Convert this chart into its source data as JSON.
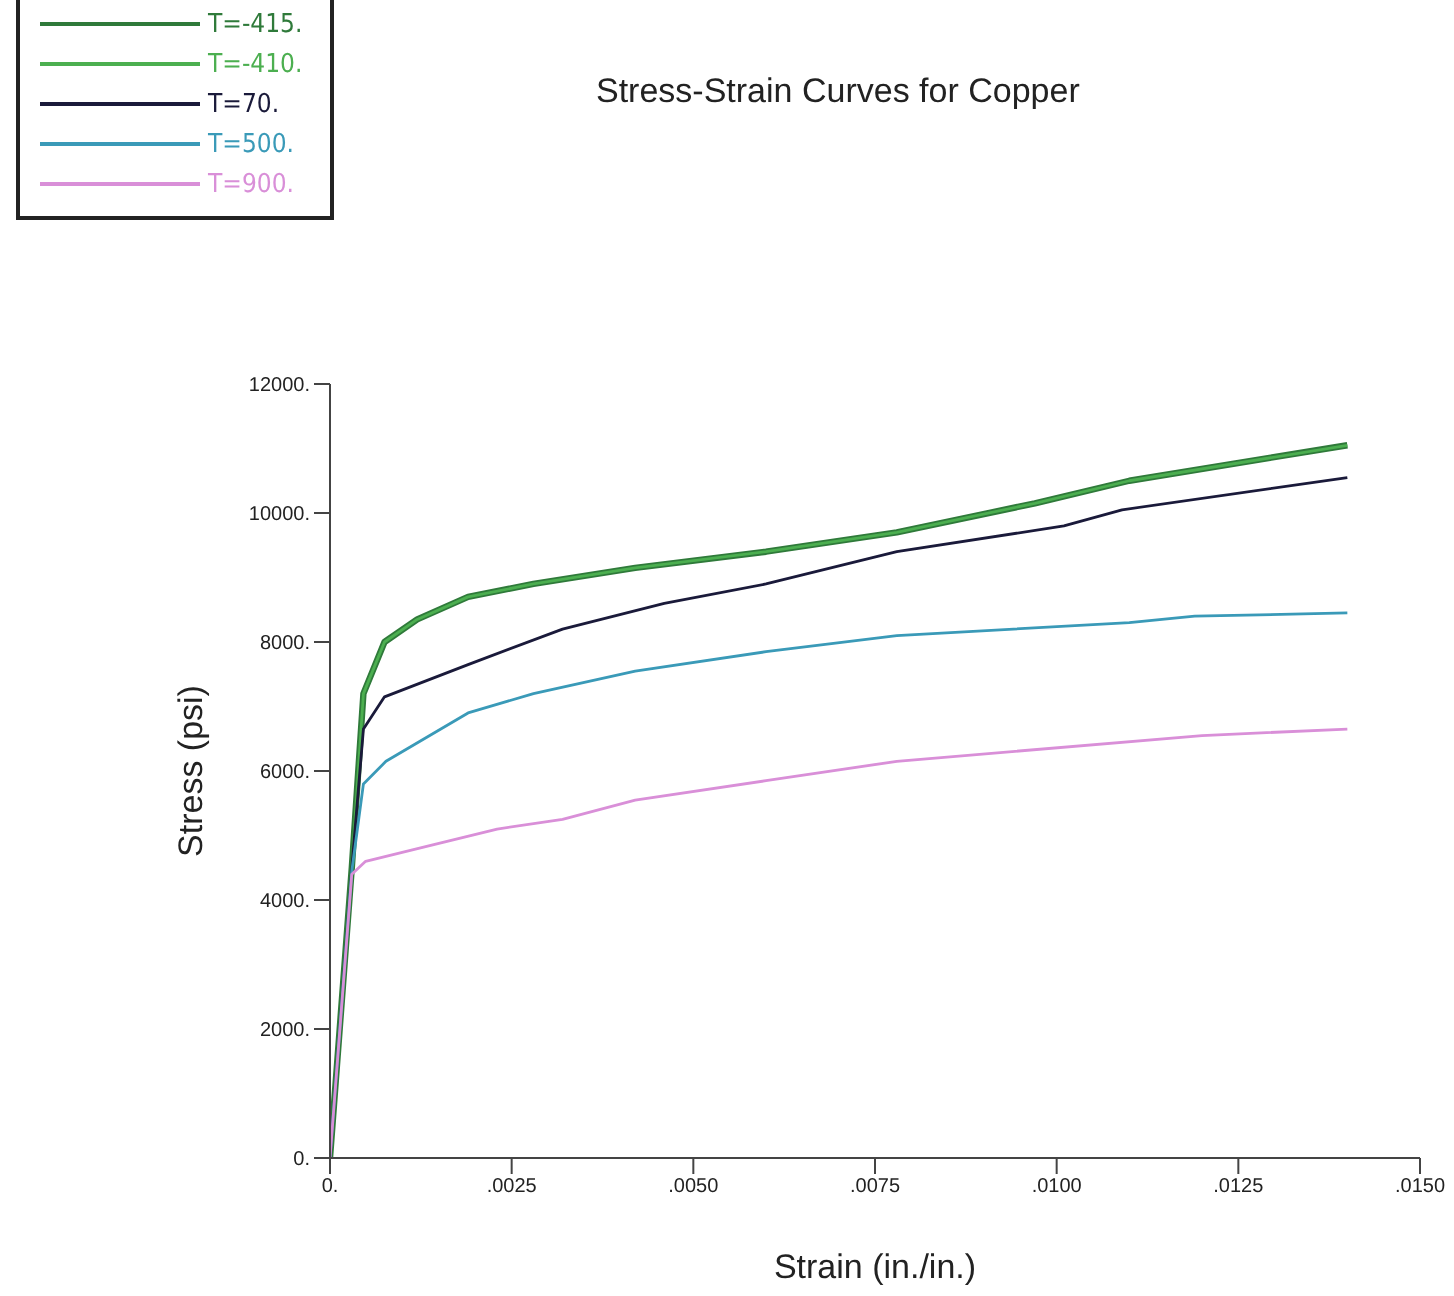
{
  "chart_data": {
    "type": "line",
    "title": "Stress-Strain Curves for Copper",
    "xlabel": "Strain (in./in.)",
    "ylabel": "Stress (psi)",
    "xlim": [
      0,
      0.015
    ],
    "xticks": [
      {
        "value": 0,
        "label": "0."
      },
      {
        "value": 0.0025,
        "label": ".0025"
      },
      {
        "value": 0.005,
        "label": ".0050"
      },
      {
        "value": 0.0075,
        "label": ".0075"
      },
      {
        "value": 0.01,
        "label": ".0100"
      },
      {
        "value": 0.0125,
        "label": ".0125"
      },
      {
        "value": 0.015,
        "label": ".0150"
      }
    ],
    "ylim": [
      0,
      12000
    ],
    "yticks": [
      {
        "value": 0,
        "label": "0."
      },
      {
        "value": 2000,
        "label": "2000."
      },
      {
        "value": 4000,
        "label": "4000."
      },
      {
        "value": 6000,
        "label": "6000."
      },
      {
        "value": 8000,
        "label": "8000."
      },
      {
        "value": 10000,
        "label": "10000."
      },
      {
        "value": 12000,
        "label": "12000."
      }
    ],
    "grid": false,
    "legend": "top left",
    "marker": "none",
    "line_style": "solid",
    "series": [
      {
        "name": "T=-415.",
        "color": "#2f7a3a",
        "x": [
          0,
          0.0003,
          0.00046,
          0.00075,
          0.0012,
          0.0019,
          0.0028,
          0.0042,
          0.006,
          0.0078,
          0.0097,
          0.011,
          0.014
        ],
        "values": [
          0,
          4500,
          7200,
          8000,
          8350,
          8700,
          8900,
          9150,
          9400,
          9700,
          10150,
          10500,
          11050
        ]
      },
      {
        "name": "T=-410.",
        "color": "#4caf50",
        "x": [
          0,
          0.0003,
          0.00046,
          0.00075,
          0.0012,
          0.0019,
          0.0028,
          0.0042,
          0.006,
          0.0078,
          0.0097,
          0.011,
          0.014
        ],
        "values": [
          0,
          4500,
          7200,
          8000,
          8350,
          8700,
          8900,
          9150,
          9400,
          9700,
          10150,
          10500,
          11050
        ]
      },
      {
        "name": "T=70.",
        "color": "#1a1a3a",
        "x": [
          0,
          0.0003,
          0.00046,
          0.00075,
          0.0019,
          0.0032,
          0.0046,
          0.006,
          0.0078,
          0.0101,
          0.0109,
          0.014
        ],
        "values": [
          0,
          4500,
          6650,
          7150,
          7650,
          8200,
          8600,
          8900,
          9400,
          9800,
          10050,
          10550
        ]
      },
      {
        "name": "T=500.",
        "color": "#3a9ab8",
        "x": [
          0,
          0.0003,
          0.00046,
          0.00077,
          0.0019,
          0.0028,
          0.0042,
          0.006,
          0.0078,
          0.011,
          0.0119,
          0.014
        ],
        "values": [
          0,
          4450,
          5800,
          6150,
          6900,
          7200,
          7550,
          7850,
          8100,
          8300,
          8400,
          8450
        ]
      },
      {
        "name": "T=900.",
        "color": "#d98fd8",
        "x": [
          0,
          0.0003,
          0.00049,
          0.0014,
          0.0023,
          0.0032,
          0.0042,
          0.006,
          0.0078,
          0.012,
          0.014
        ],
        "values": [
          0,
          4400,
          4600,
          4850,
          5100,
          5250,
          5550,
          5850,
          6150,
          6550,
          6650
        ]
      }
    ]
  }
}
